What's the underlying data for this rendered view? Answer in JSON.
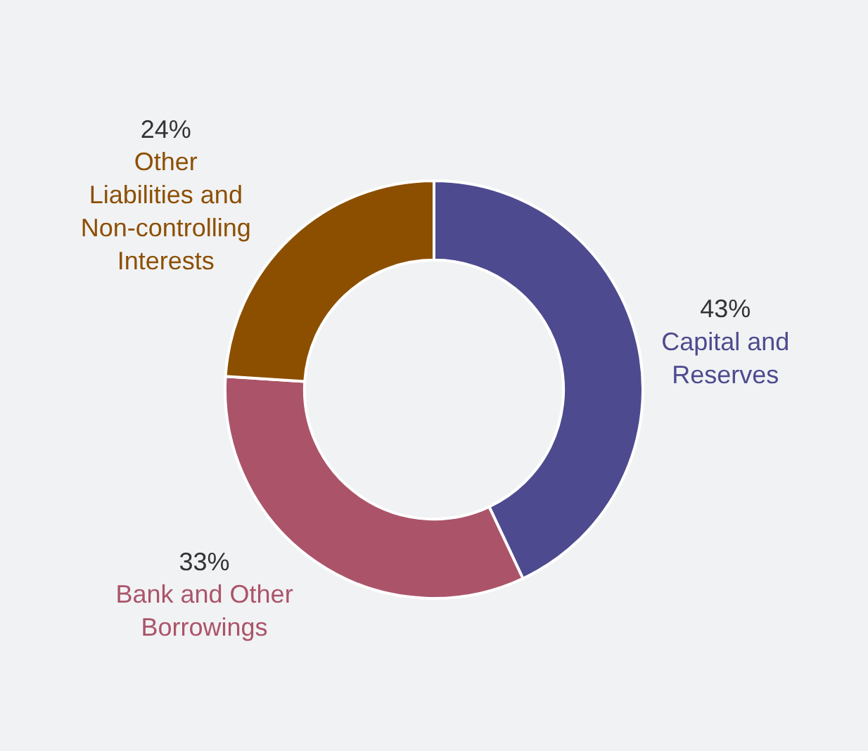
{
  "chart_data": {
    "type": "donut",
    "categories": [
      "Capital and Reserves",
      "Bank and Other Borrowings",
      "Other Liabilities and Non-controlling Interests"
    ],
    "values": [
      43,
      33,
      24
    ],
    "colors": [
      "#4e4a8f",
      "#ab5469",
      "#8c4f00"
    ],
    "value_labels": [
      "43%",
      "33%",
      "24%"
    ],
    "legend": false
  }
}
